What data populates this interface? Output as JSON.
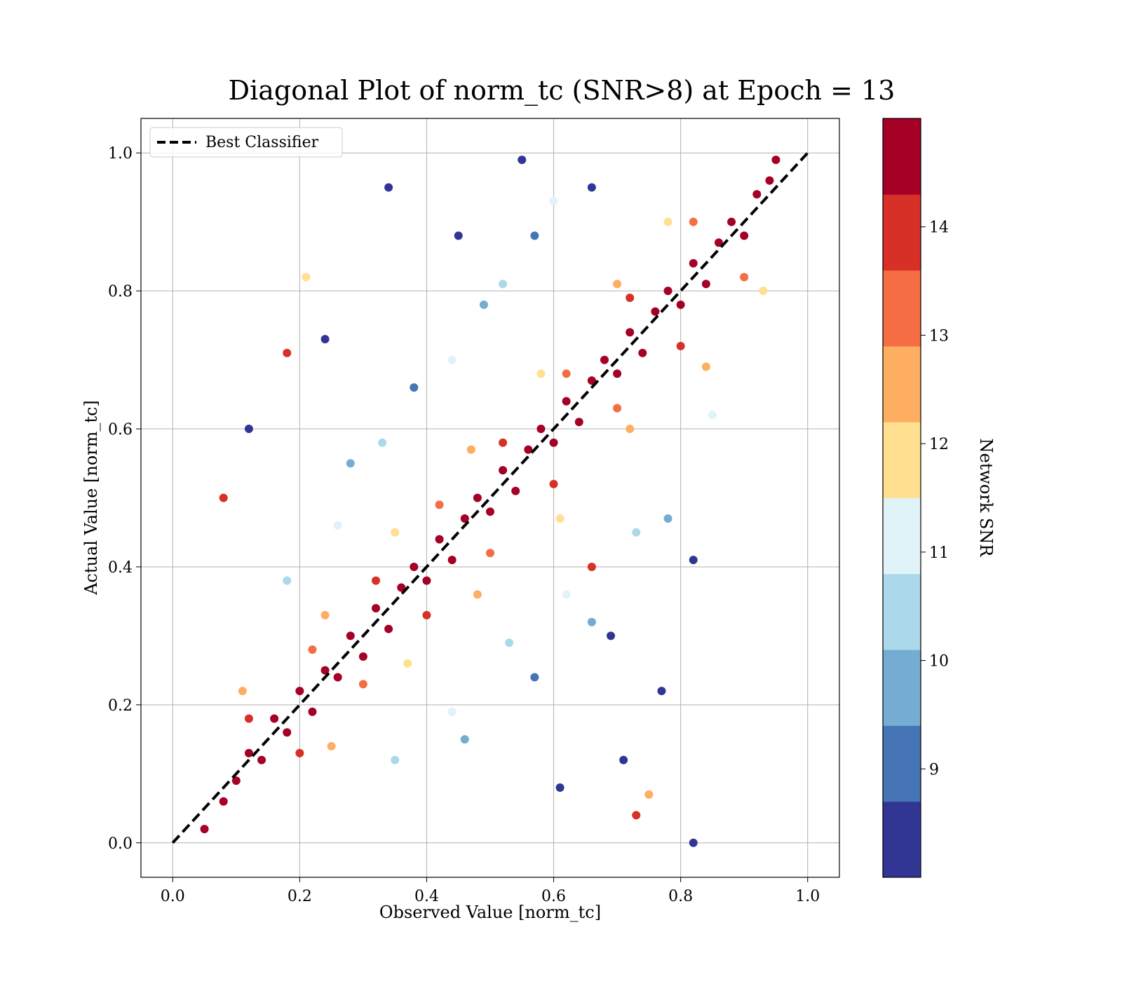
{
  "chart_data": {
    "type": "scatter",
    "title": "Diagonal Plot of norm_tc (SNR>8) at Epoch = 13",
    "xlabel": "Observed Value [norm_tc]",
    "ylabel": "Actual Value [norm_tc]",
    "xlim": [
      -0.05,
      1.05
    ],
    "ylim": [
      -0.05,
      1.05
    ],
    "xticks": [
      "0.0",
      "0.2",
      "0.4",
      "0.6",
      "0.8",
      "1.0"
    ],
    "yticks": [
      "0.0",
      "0.2",
      "0.4",
      "0.6",
      "0.8",
      "1.0"
    ],
    "grid": true,
    "legend": {
      "placement": "upper-left",
      "entries": [
        "Best Classifier"
      ]
    },
    "reference_line": {
      "name": "Best Classifier",
      "style": "dashed",
      "color": "#000000",
      "x": [
        0.0,
        1.0
      ],
      "y": [
        0.0,
        1.0
      ]
    },
    "colorbar": {
      "label": "Network SNR",
      "range": [
        8.0,
        15.0
      ],
      "ticks": [
        "9",
        "10",
        "11",
        "12",
        "13",
        "14"
      ],
      "levels": [
        {
          "from": 8.0,
          "to": 8.7,
          "color": "#313695"
        },
        {
          "from": 8.7,
          "to": 9.4,
          "color": "#4575b4"
        },
        {
          "from": 9.4,
          "to": 10.1,
          "color": "#74add1"
        },
        {
          "from": 10.1,
          "to": 10.8,
          "color": "#abd9e9"
        },
        {
          "from": 10.8,
          "to": 11.5,
          "color": "#e0f3f8"
        },
        {
          "from": 11.5,
          "to": 12.2,
          "color": "#fee090"
        },
        {
          "from": 12.2,
          "to": 12.9,
          "color": "#fdae61"
        },
        {
          "from": 12.9,
          "to": 13.6,
          "color": "#f46d43"
        },
        {
          "from": 13.6,
          "to": 14.3,
          "color": "#d73027"
        },
        {
          "from": 14.3,
          "to": 15.0,
          "color": "#a50026"
        }
      ]
    },
    "series": [
      {
        "values": [
          [
            0.05,
            0.02,
            14.8
          ],
          [
            0.08,
            0.06,
            14.6
          ],
          [
            0.1,
            0.09,
            14.9
          ],
          [
            0.12,
            0.13,
            14.5
          ],
          [
            0.14,
            0.12,
            14.7
          ],
          [
            0.16,
            0.18,
            14.4
          ],
          [
            0.18,
            0.16,
            14.8
          ],
          [
            0.2,
            0.22,
            14.6
          ],
          [
            0.22,
            0.19,
            14.9
          ],
          [
            0.24,
            0.25,
            14.5
          ],
          [
            0.26,
            0.24,
            14.7
          ],
          [
            0.28,
            0.3,
            14.8
          ],
          [
            0.3,
            0.27,
            14.6
          ],
          [
            0.32,
            0.34,
            14.9
          ],
          [
            0.34,
            0.31,
            14.5
          ],
          [
            0.36,
            0.37,
            14.7
          ],
          [
            0.38,
            0.4,
            14.8
          ],
          [
            0.4,
            0.38,
            14.6
          ],
          [
            0.42,
            0.44,
            14.9
          ],
          [
            0.44,
            0.41,
            14.5
          ],
          [
            0.46,
            0.47,
            14.7
          ],
          [
            0.48,
            0.5,
            14.8
          ],
          [
            0.5,
            0.48,
            14.6
          ],
          [
            0.52,
            0.54,
            14.9
          ],
          [
            0.54,
            0.51,
            14.5
          ],
          [
            0.56,
            0.57,
            14.7
          ],
          [
            0.58,
            0.6,
            14.8
          ],
          [
            0.6,
            0.58,
            14.6
          ],
          [
            0.62,
            0.64,
            14.9
          ],
          [
            0.64,
            0.61,
            14.5
          ],
          [
            0.66,
            0.67,
            14.7
          ],
          [
            0.68,
            0.7,
            14.8
          ],
          [
            0.7,
            0.68,
            14.6
          ],
          [
            0.72,
            0.74,
            14.9
          ],
          [
            0.74,
            0.71,
            14.5
          ],
          [
            0.76,
            0.77,
            14.7
          ],
          [
            0.78,
            0.8,
            14.8
          ],
          [
            0.8,
            0.78,
            14.6
          ],
          [
            0.82,
            0.84,
            14.9
          ],
          [
            0.84,
            0.81,
            14.5
          ],
          [
            0.86,
            0.87,
            14.7
          ],
          [
            0.88,
            0.9,
            14.8
          ],
          [
            0.9,
            0.88,
            14.6
          ],
          [
            0.92,
            0.94,
            14.9
          ],
          [
            0.94,
            0.96,
            14.5
          ],
          [
            0.95,
            0.99,
            14.7
          ],
          [
            0.12,
            0.18,
            13.9
          ],
          [
            0.22,
            0.28,
            13.4
          ],
          [
            0.32,
            0.38,
            13.8
          ],
          [
            0.42,
            0.49,
            13.3
          ],
          [
            0.52,
            0.58,
            13.7
          ],
          [
            0.62,
            0.68,
            13.2
          ],
          [
            0.72,
            0.79,
            13.9
          ],
          [
            0.82,
            0.9,
            13.5
          ],
          [
            0.2,
            0.13,
            13.8
          ],
          [
            0.3,
            0.23,
            13.3
          ],
          [
            0.4,
            0.33,
            13.9
          ],
          [
            0.5,
            0.42,
            13.4
          ],
          [
            0.6,
            0.52,
            13.8
          ],
          [
            0.7,
            0.63,
            13.2
          ],
          [
            0.8,
            0.72,
            13.9
          ],
          [
            0.9,
            0.82,
            13.4
          ],
          [
            0.11,
            0.22,
            12.6
          ],
          [
            0.24,
            0.33,
            12.4
          ],
          [
            0.35,
            0.45,
            11.9
          ],
          [
            0.47,
            0.57,
            12.5
          ],
          [
            0.58,
            0.68,
            12.0
          ],
          [
            0.7,
            0.81,
            12.6
          ],
          [
            0.78,
            0.9,
            11.8
          ],
          [
            0.25,
            0.14,
            12.5
          ],
          [
            0.37,
            0.26,
            12.0
          ],
          [
            0.48,
            0.36,
            12.6
          ],
          [
            0.61,
            0.47,
            11.9
          ],
          [
            0.72,
            0.6,
            12.4
          ],
          [
            0.84,
            0.69,
            12.5
          ],
          [
            0.93,
            0.8,
            11.7
          ],
          [
            0.18,
            0.38,
            10.5
          ],
          [
            0.26,
            0.46,
            11.2
          ],
          [
            0.33,
            0.58,
            10.3
          ],
          [
            0.44,
            0.7,
            11.0
          ],
          [
            0.52,
            0.81,
            10.6
          ],
          [
            0.6,
            0.93,
            11.3
          ],
          [
            0.35,
            0.12,
            10.4
          ],
          [
            0.44,
            0.19,
            11.1
          ],
          [
            0.53,
            0.29,
            10.2
          ],
          [
            0.62,
            0.36,
            10.9
          ],
          [
            0.73,
            0.45,
            10.5
          ],
          [
            0.85,
            0.62,
            11.2
          ],
          [
            0.28,
            0.55,
            9.6
          ],
          [
            0.38,
            0.66,
            9.1
          ],
          [
            0.49,
            0.78,
            9.8
          ],
          [
            0.57,
            0.88,
            9.3
          ],
          [
            0.46,
            0.15,
            9.7
          ],
          [
            0.57,
            0.24,
            9.2
          ],
          [
            0.66,
            0.32,
            9.9
          ],
          [
            0.78,
            0.47,
            9.4
          ],
          [
            0.12,
            0.6,
            8.3
          ],
          [
            0.24,
            0.73,
            8.5
          ],
          [
            0.34,
            0.95,
            8.2
          ],
          [
            0.45,
            0.88,
            8.4
          ],
          [
            0.55,
            0.99,
            8.1
          ],
          [
            0.66,
            0.95,
            8.6
          ],
          [
            0.61,
            0.08,
            8.3
          ],
          [
            0.71,
            0.12,
            8.5
          ],
          [
            0.77,
            0.22,
            8.2
          ],
          [
            0.82,
            0.41,
            8.4
          ],
          [
            0.82,
            0.0,
            8.1
          ],
          [
            0.69,
            0.3,
            8.6
          ],
          [
            0.08,
            0.5,
            13.6
          ],
          [
            0.18,
            0.71,
            13.8
          ],
          [
            0.73,
            0.04,
            13.7
          ],
          [
            0.66,
            0.4,
            13.9
          ],
          [
            0.21,
            0.82,
            12.1
          ],
          [
            0.75,
            0.07,
            12.3
          ]
        ]
      }
    ]
  }
}
